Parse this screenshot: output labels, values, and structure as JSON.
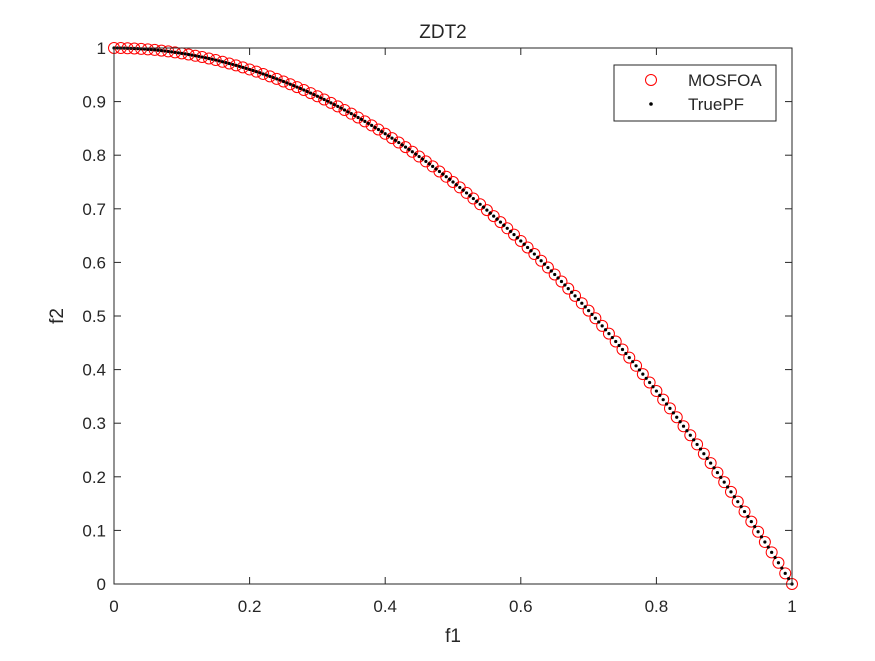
{
  "chart_data": {
    "type": "scatter",
    "title": "ZDT2",
    "xlabel": "f1",
    "ylabel": "f2",
    "xlim": [
      0,
      1
    ],
    "ylim": [
      0,
      1
    ],
    "xticks": [
      0,
      0.2,
      0.4,
      0.6,
      0.8,
      1
    ],
    "xtick_labels": [
      "0",
      "0.2",
      "0.4",
      "0.6",
      "0.8",
      "1"
    ],
    "yticks": [
      0,
      0.1,
      0.2,
      0.3,
      0.4,
      0.5,
      0.6,
      0.7,
      0.8,
      0.9,
      1
    ],
    "ytick_labels": [
      "0",
      "0.1",
      "0.2",
      "0.3",
      "0.4",
      "0.5",
      "0.6",
      "0.7",
      "0.8",
      "0.9",
      "1"
    ],
    "grid": false,
    "legend_position": "top-right",
    "series": [
      {
        "name": "MOSFOA",
        "marker": "circle-open",
        "color": "#ff0000",
        "x_range": [
          0,
          1
        ],
        "n_points": 101,
        "curve": "f2 = 1 - f1^2"
      },
      {
        "name": "TruePF",
        "marker": "dot",
        "color": "#000000",
        "x_range": [
          0,
          1
        ],
        "n_points": 201,
        "curve": "f2 = 1 - f1^2"
      }
    ]
  }
}
